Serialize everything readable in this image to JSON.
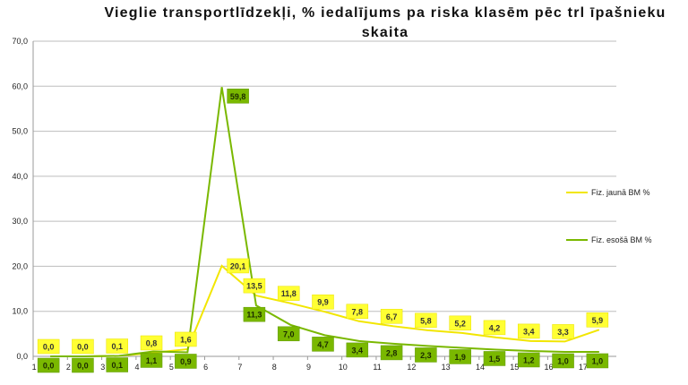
{
  "chart_data": {
    "type": "line",
    "title": "Vieglie transportlīdzekļi, % iedalījums pa riska klasēm pēc trl īpašnieku skaita",
    "xlabel": "",
    "ylabel": "",
    "x": [
      "1",
      "2",
      "3",
      "4",
      "5",
      "6",
      "7",
      "8",
      "9",
      "10",
      "11",
      "12",
      "13",
      "14",
      "15",
      "16",
      "17"
    ],
    "ylim": [
      0,
      70
    ],
    "yticks": [
      "0,0",
      "10,0",
      "20,0",
      "30,0",
      "40,0",
      "50,0",
      "60,0",
      "70,0"
    ],
    "grid": true,
    "legend_position": "right",
    "series": [
      {
        "name": "Fiz. jaunā BM %",
        "color": "#f2e600",
        "label_bg": "#ffff33",
        "values": [
          0.0,
          0.0,
          0.1,
          0.8,
          1.6,
          20.1,
          13.5,
          11.8,
          9.9,
          7.8,
          6.7,
          5.8,
          5.2,
          4.2,
          3.4,
          3.3,
          5.9
        ],
        "labels": [
          "0,0",
          "0,0",
          "0,1",
          "0,8",
          "1,6",
          "20,1",
          "13,5",
          "11,8",
          "9,9",
          "7,8",
          "6,7",
          "5,8",
          "5,2",
          "4,2",
          "3,4",
          "3,3",
          "5,9"
        ]
      },
      {
        "name": "Fiz. esošā BM %",
        "color": "#7ab800",
        "label_bg": "#7ab800",
        "values": [
          0.0,
          0.0,
          0.1,
          1.1,
          0.9,
          59.8,
          11.3,
          7.0,
          4.7,
          3.4,
          2.8,
          2.3,
          1.9,
          1.5,
          1.2,
          1.0,
          1.0
        ],
        "labels": [
          "0,0",
          "0,0",
          "0,1",
          "1,1",
          "0,9",
          "59,8",
          "11,3",
          "7,0",
          "4,7",
          "3,4",
          "2,8",
          "2,3",
          "1,9",
          "1,5",
          "1,2",
          "1,0",
          "1,0"
        ]
      }
    ]
  }
}
